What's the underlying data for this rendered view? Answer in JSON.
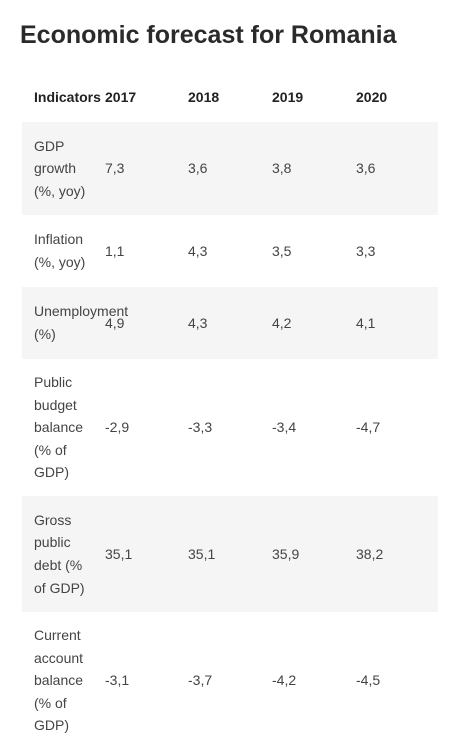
{
  "title": "Economic forecast for Romania",
  "table": {
    "headers": [
      "Indicators",
      "2017",
      "2018",
      "2019",
      "2020"
    ],
    "rows": [
      {
        "indicator": "GDP growth (%, yoy)",
        "indicator_lines": [
          "GDP",
          "growth",
          "(%, yoy)"
        ],
        "values": [
          "7,3",
          "3,6",
          "3,8",
          "3,6"
        ]
      },
      {
        "indicator": "Inflation (%, yoy)",
        "indicator_lines": [
          "Inflation",
          "(%, yoy)"
        ],
        "values": [
          "1,1",
          "4,3",
          "3,5",
          "3,3"
        ]
      },
      {
        "indicator": "Unemployment (%)",
        "indicator_lines": [
          "Unemployment",
          "(%)"
        ],
        "values": [
          "4,9",
          "4,3",
          "4,2",
          "4,1"
        ]
      },
      {
        "indicator": "Public budget balance (% of GDP)",
        "indicator_lines": [
          "Public",
          "budget",
          "balance",
          "(% of",
          "GDP)"
        ],
        "values": [
          "-2,9",
          "-3,3",
          "-3,4",
          "-4,7"
        ]
      },
      {
        "indicator": "Gross public debt (% of GDP)",
        "indicator_lines": [
          "Gross",
          "public",
          "debt (%",
          "of GDP)"
        ],
        "values": [
          "35,1",
          "35,1",
          "35,9",
          "38,2"
        ]
      },
      {
        "indicator": "Current account balance (% of GDP)",
        "indicator_lines": [
          "Current",
          "account",
          "balance",
          "(% of",
          "GDP)"
        ],
        "values": [
          "-3,1",
          "-3,7",
          "-4,2",
          "-4,5"
        ]
      }
    ]
  },
  "colors": {
    "row_shade": "#f5f5f5",
    "text": "#444444",
    "heading": "#2a2a2a"
  }
}
